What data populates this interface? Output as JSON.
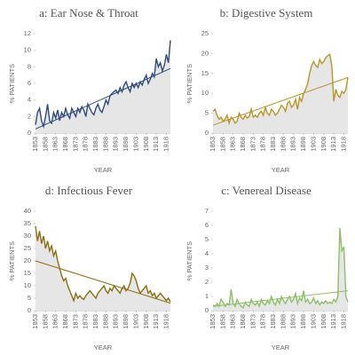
{
  "chart_data": [
    {
      "type": "line",
      "title": "a: Ear Nose & Throat",
      "xlabel": "YEAR",
      "ylabel": "% PATIENTS",
      "x": [
        1853,
        1854,
        1855,
        1856,
        1857,
        1858,
        1859,
        1860,
        1861,
        1862,
        1863,
        1864,
        1865,
        1866,
        1867,
        1868,
        1869,
        1870,
        1871,
        1872,
        1873,
        1874,
        1875,
        1876,
        1877,
        1878,
        1879,
        1880,
        1881,
        1882,
        1883,
        1884,
        1885,
        1886,
        1887,
        1888,
        1889,
        1890,
        1891,
        1892,
        1893,
        1894,
        1895,
        1896,
        1897,
        1898,
        1899,
        1900,
        1901,
        1902,
        1903,
        1904,
        1905,
        1906,
        1907,
        1908,
        1909,
        1910,
        1911,
        1912,
        1913,
        1914,
        1915,
        1916,
        1917,
        1918,
        1919,
        1920
      ],
      "series": [
        {
          "color": "#2e4a7d",
          "values": [
            1.0,
            2.5,
            3.0,
            1.5,
            0.8,
            2.0,
            3.5,
            1.5,
            1.2,
            2.5,
            1.8,
            2.8,
            1.5,
            2.5,
            2.0,
            3.0,
            2.2,
            1.8,
            3.0,
            2.5,
            2.0,
            3.0,
            2.5,
            3.2,
            2.8,
            2.0,
            3.5,
            3.0,
            2.5,
            2.2,
            3.0,
            3.5,
            2.8,
            2.5,
            3.2,
            4.0,
            3.5,
            4.5,
            4.8,
            5.0,
            5.2,
            4.8,
            5.5,
            5.0,
            5.8,
            6.2,
            5.5,
            5.0,
            6.0,
            5.5,
            6.0,
            5.5,
            6.2,
            5.8,
            6.5,
            7.0,
            6.0,
            6.5,
            7.2,
            6.8,
            9.0,
            8.0,
            8.5,
            7.5,
            8.2,
            9.5,
            8.5,
            11.2
          ]
        }
      ],
      "trend": [
        0.5,
        7.8
      ],
      "xlim": [
        1853,
        1920
      ],
      "xticks": [
        1853,
        1858,
        1863,
        1868,
        1873,
        1878,
        1883,
        1888,
        1893,
        1898,
        1903,
        1908,
        1913,
        1918
      ],
      "ylim": [
        0,
        12
      ],
      "yticks": [
        0,
        2,
        4,
        6,
        8,
        10,
        12
      ]
    },
    {
      "type": "line",
      "title": "b: Digestive System",
      "xlabel": "YEAR",
      "ylabel": "% PATIENTS",
      "x": [
        1853,
        1854,
        1855,
        1856,
        1857,
        1858,
        1859,
        1860,
        1861,
        1862,
        1863,
        1864,
        1865,
        1866,
        1867,
        1868,
        1869,
        1870,
        1871,
        1872,
        1873,
        1874,
        1875,
        1876,
        1877,
        1878,
        1879,
        1880,
        1881,
        1882,
        1883,
        1884,
        1885,
        1886,
        1887,
        1888,
        1889,
        1890,
        1891,
        1892,
        1893,
        1894,
        1895,
        1896,
        1897,
        1898,
        1899,
        1900,
        1901,
        1902,
        1903,
        1904,
        1905,
        1906,
        1907,
        1908,
        1909,
        1910,
        1911,
        1912,
        1913,
        1914,
        1915,
        1916,
        1917,
        1918,
        1919,
        1920
      ],
      "series": [
        {
          "color": "#b8962e",
          "values": [
            5.5,
            6.0,
            4.5,
            3.5,
            4.0,
            3.0,
            3.5,
            4.5,
            2.5,
            4.0,
            3.5,
            2.5,
            3.0,
            5.0,
            4.0,
            3.5,
            4.5,
            3.8,
            4.2,
            6.0,
            4.0,
            4.5,
            4.0,
            5.0,
            5.5,
            4.5,
            6.5,
            5.0,
            4.5,
            6.0,
            5.5,
            4.5,
            5.0,
            6.0,
            7.0,
            6.5,
            5.5,
            7.5,
            8.0,
            6.5,
            7.0,
            8.5,
            6.0,
            9.0,
            8.0,
            10.0,
            11.0,
            12.5,
            15.0,
            17.0,
            18.0,
            17.0,
            16.5,
            18.5,
            17.5,
            18.0,
            19.0,
            19.5,
            19.8,
            17.0,
            8.0,
            11.0,
            9.5,
            9.0,
            10.5,
            10.0,
            11.0,
            14.0
          ]
        }
      ],
      "trend": [
        2,
        14
      ],
      "xlim": [
        1853,
        1920
      ],
      "xticks": [
        1853,
        1858,
        1863,
        1868,
        1873,
        1878,
        1883,
        1888,
        1893,
        1898,
        1903,
        1908,
        1913,
        1918
      ],
      "ylim": [
        0,
        25
      ],
      "yticks": [
        0,
        5,
        10,
        15,
        20,
        25
      ]
    },
    {
      "type": "line",
      "title": "d: Infectious Fever",
      "xlabel": "YEAR",
      "ylabel": "% PATIENTS",
      "x": [
        1853,
        1854,
        1855,
        1856,
        1857,
        1858,
        1859,
        1860,
        1861,
        1862,
        1863,
        1864,
        1865,
        1866,
        1867,
        1868,
        1869,
        1870,
        1871,
        1872,
        1873,
        1874,
        1875,
        1876,
        1877,
        1878,
        1879,
        1880,
        1881,
        1882,
        1883,
        1884,
        1885,
        1886,
        1887,
        1888,
        1889,
        1890,
        1891,
        1892,
        1893,
        1894,
        1895,
        1896,
        1897,
        1898,
        1899,
        1900,
        1901,
        1902,
        1903,
        1904,
        1905,
        1906,
        1907,
        1908,
        1909,
        1910,
        1911,
        1912,
        1913,
        1914,
        1915,
        1916,
        1917,
        1918,
        1919,
        1920
      ],
      "series": [
        {
          "color": "#8b6d14",
          "values": [
            34,
            28,
            32,
            27,
            30,
            25,
            28,
            24,
            26,
            22,
            24,
            20,
            17,
            14,
            12,
            13,
            10,
            8,
            6,
            4,
            7,
            5,
            6,
            5,
            4.5,
            6,
            7,
            8,
            7,
            6,
            5,
            7,
            8,
            9,
            10,
            8,
            7,
            9,
            8,
            10,
            9,
            8,
            7,
            9,
            10,
            8,
            9,
            11,
            15,
            14,
            12,
            9,
            7,
            8,
            9,
            10,
            7,
            8,
            6,
            7,
            5,
            6,
            7,
            6,
            5,
            4,
            5,
            3.5
          ]
        }
      ],
      "trend": [
        20,
        3
      ],
      "xlim": [
        1853,
        1920
      ],
      "xticks": [
        1853,
        1858,
        1863,
        1868,
        1873,
        1878,
        1883,
        1888,
        1893,
        1898,
        1903,
        1908,
        1913,
        1918
      ],
      "ylim": [
        0,
        40
      ],
      "yticks": [
        0,
        5,
        10,
        15,
        20,
        25,
        30,
        35,
        40
      ]
    },
    {
      "type": "line",
      "title": "c: Venereal Disease",
      "xlabel": "YEAR",
      "ylabel": "% PATIENTS",
      "x": [
        1853,
        1854,
        1855,
        1856,
        1857,
        1858,
        1859,
        1860,
        1861,
        1862,
        1863,
        1864,
        1865,
        1866,
        1867,
        1868,
        1869,
        1870,
        1871,
        1872,
        1873,
        1874,
        1875,
        1876,
        1877,
        1878,
        1879,
        1880,
        1881,
        1882,
        1883,
        1884,
        1885,
        1886,
        1887,
        1888,
        1889,
        1890,
        1891,
        1892,
        1893,
        1894,
        1895,
        1896,
        1897,
        1898,
        1899,
        1900,
        1901,
        1902,
        1903,
        1904,
        1905,
        1906,
        1907,
        1908,
        1909,
        1910,
        1911,
        1912,
        1913,
        1914,
        1915,
        1916,
        1917,
        1918,
        1919,
        1920
      ],
      "series": [
        {
          "color": "#8fbf6a",
          "values": [
            0.4,
            0.3,
            0.5,
            0.3,
            0.8,
            0.6,
            0.3,
            0.5,
            0.4,
            1.5,
            0.5,
            0.3,
            0.8,
            0.5,
            0.3,
            0.2,
            0.6,
            0.4,
            0.3,
            0.8,
            0.5,
            0.4,
            0.6,
            0.3,
            0.8,
            0.5,
            0.4,
            0.7,
            0.5,
            1.0,
            0.6,
            0.4,
            0.8,
            0.5,
            1.0,
            0.7,
            0.5,
            0.8,
            1.0,
            0.6,
            0.8,
            1.2,
            0.5,
            0.9,
            0.7,
            1.4,
            0.6,
            0.8,
            0.5,
            0.6,
            0.9,
            0.5,
            0.7,
            0.4,
            0.6,
            0.5,
            0.7,
            0.5,
            0.6,
            0.5,
            0.8,
            0.6,
            1.0,
            5.8,
            4.2,
            4.5,
            1.0,
            0.6
          ]
        }
      ],
      "trend": [
        0.3,
        1.4
      ],
      "xlim": [
        1853,
        1920
      ],
      "xticks": [
        1853,
        1858,
        1863,
        1868,
        1873,
        1878,
        1883,
        1888,
        1893,
        1898,
        1903,
        1908,
        1913,
        1918
      ],
      "ylim": [
        0,
        7
      ],
      "yticks": [
        0,
        1,
        2,
        3,
        4,
        5,
        6,
        7
      ]
    }
  ]
}
